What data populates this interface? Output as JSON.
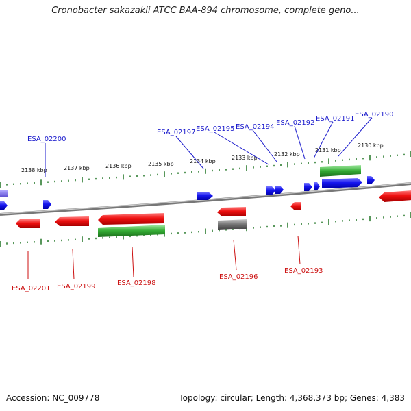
{
  "title": "Cronobacter sakazakii ATCC BAA-894 chromosome, complete geno...",
  "footer": {
    "accession": "Accession: NC_009778",
    "summary": "Topology: circular; Length: 4,368,373 bp; Genes: 4,383"
  },
  "colors": {
    "forward_gene": "#1111ee",
    "reverse_gene": "#ee1111",
    "cds_bar": "#33aa33",
    "pseudo_gene": "#777777",
    "backbone": "#888888",
    "tick": "#2e7d32",
    "forward_label": "#1a1acc",
    "reverse_label": "#cc1111"
  },
  "scale_ticks": [
    "2138 kbp",
    "2137 kbp",
    "2136 kbp",
    "2135 kbp",
    "2134 kbp",
    "2133 kbp",
    "2132 kbp",
    "2131 kbp",
    "2130 kbp"
  ],
  "forward_labels": [
    "ESA_02200",
    "ESA_02197",
    "ESA_02195",
    "ESA_02194",
    "ESA_02192",
    "ESA_02191",
    "ESA_02190"
  ],
  "reverse_labels": [
    "ESA_02201",
    "ESA_02199",
    "ESA_02198",
    "ESA_02196",
    "ESA_02193"
  ]
}
